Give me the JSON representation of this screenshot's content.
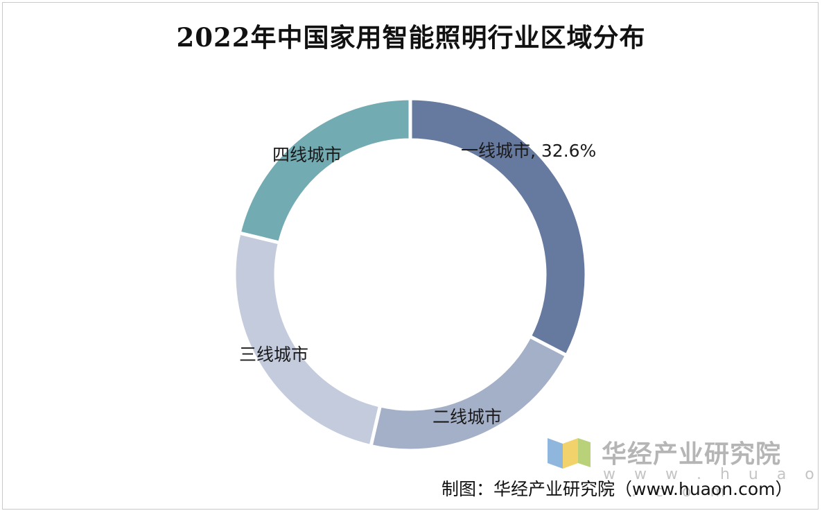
{
  "chart_data": {
    "type": "donut",
    "title": "2022年中国家用智能照明行业区域分布",
    "slices": [
      {
        "name": "一线城市",
        "value": 32.6,
        "label": "一线城市, 32.6%",
        "color": "#66799f"
      },
      {
        "name": "二线城市",
        "value": 21.0,
        "label": "二线城市",
        "color": "#a4b0c8"
      },
      {
        "name": "三线城市",
        "value": 25.2,
        "label": "三线城市",
        "color": "#c4cbdc"
      },
      {
        "name": "四线城市",
        "value": 21.2,
        "label": "四线城市",
        "color": "#73abb2"
      }
    ],
    "start_angle_deg": 0,
    "direction": "clockwise"
  },
  "watermark": {
    "name": "华经产业研究院",
    "url": "w w w . h u a o n . c o m"
  },
  "credit": "制图：华经产业研究院（www.huaon.com）"
}
